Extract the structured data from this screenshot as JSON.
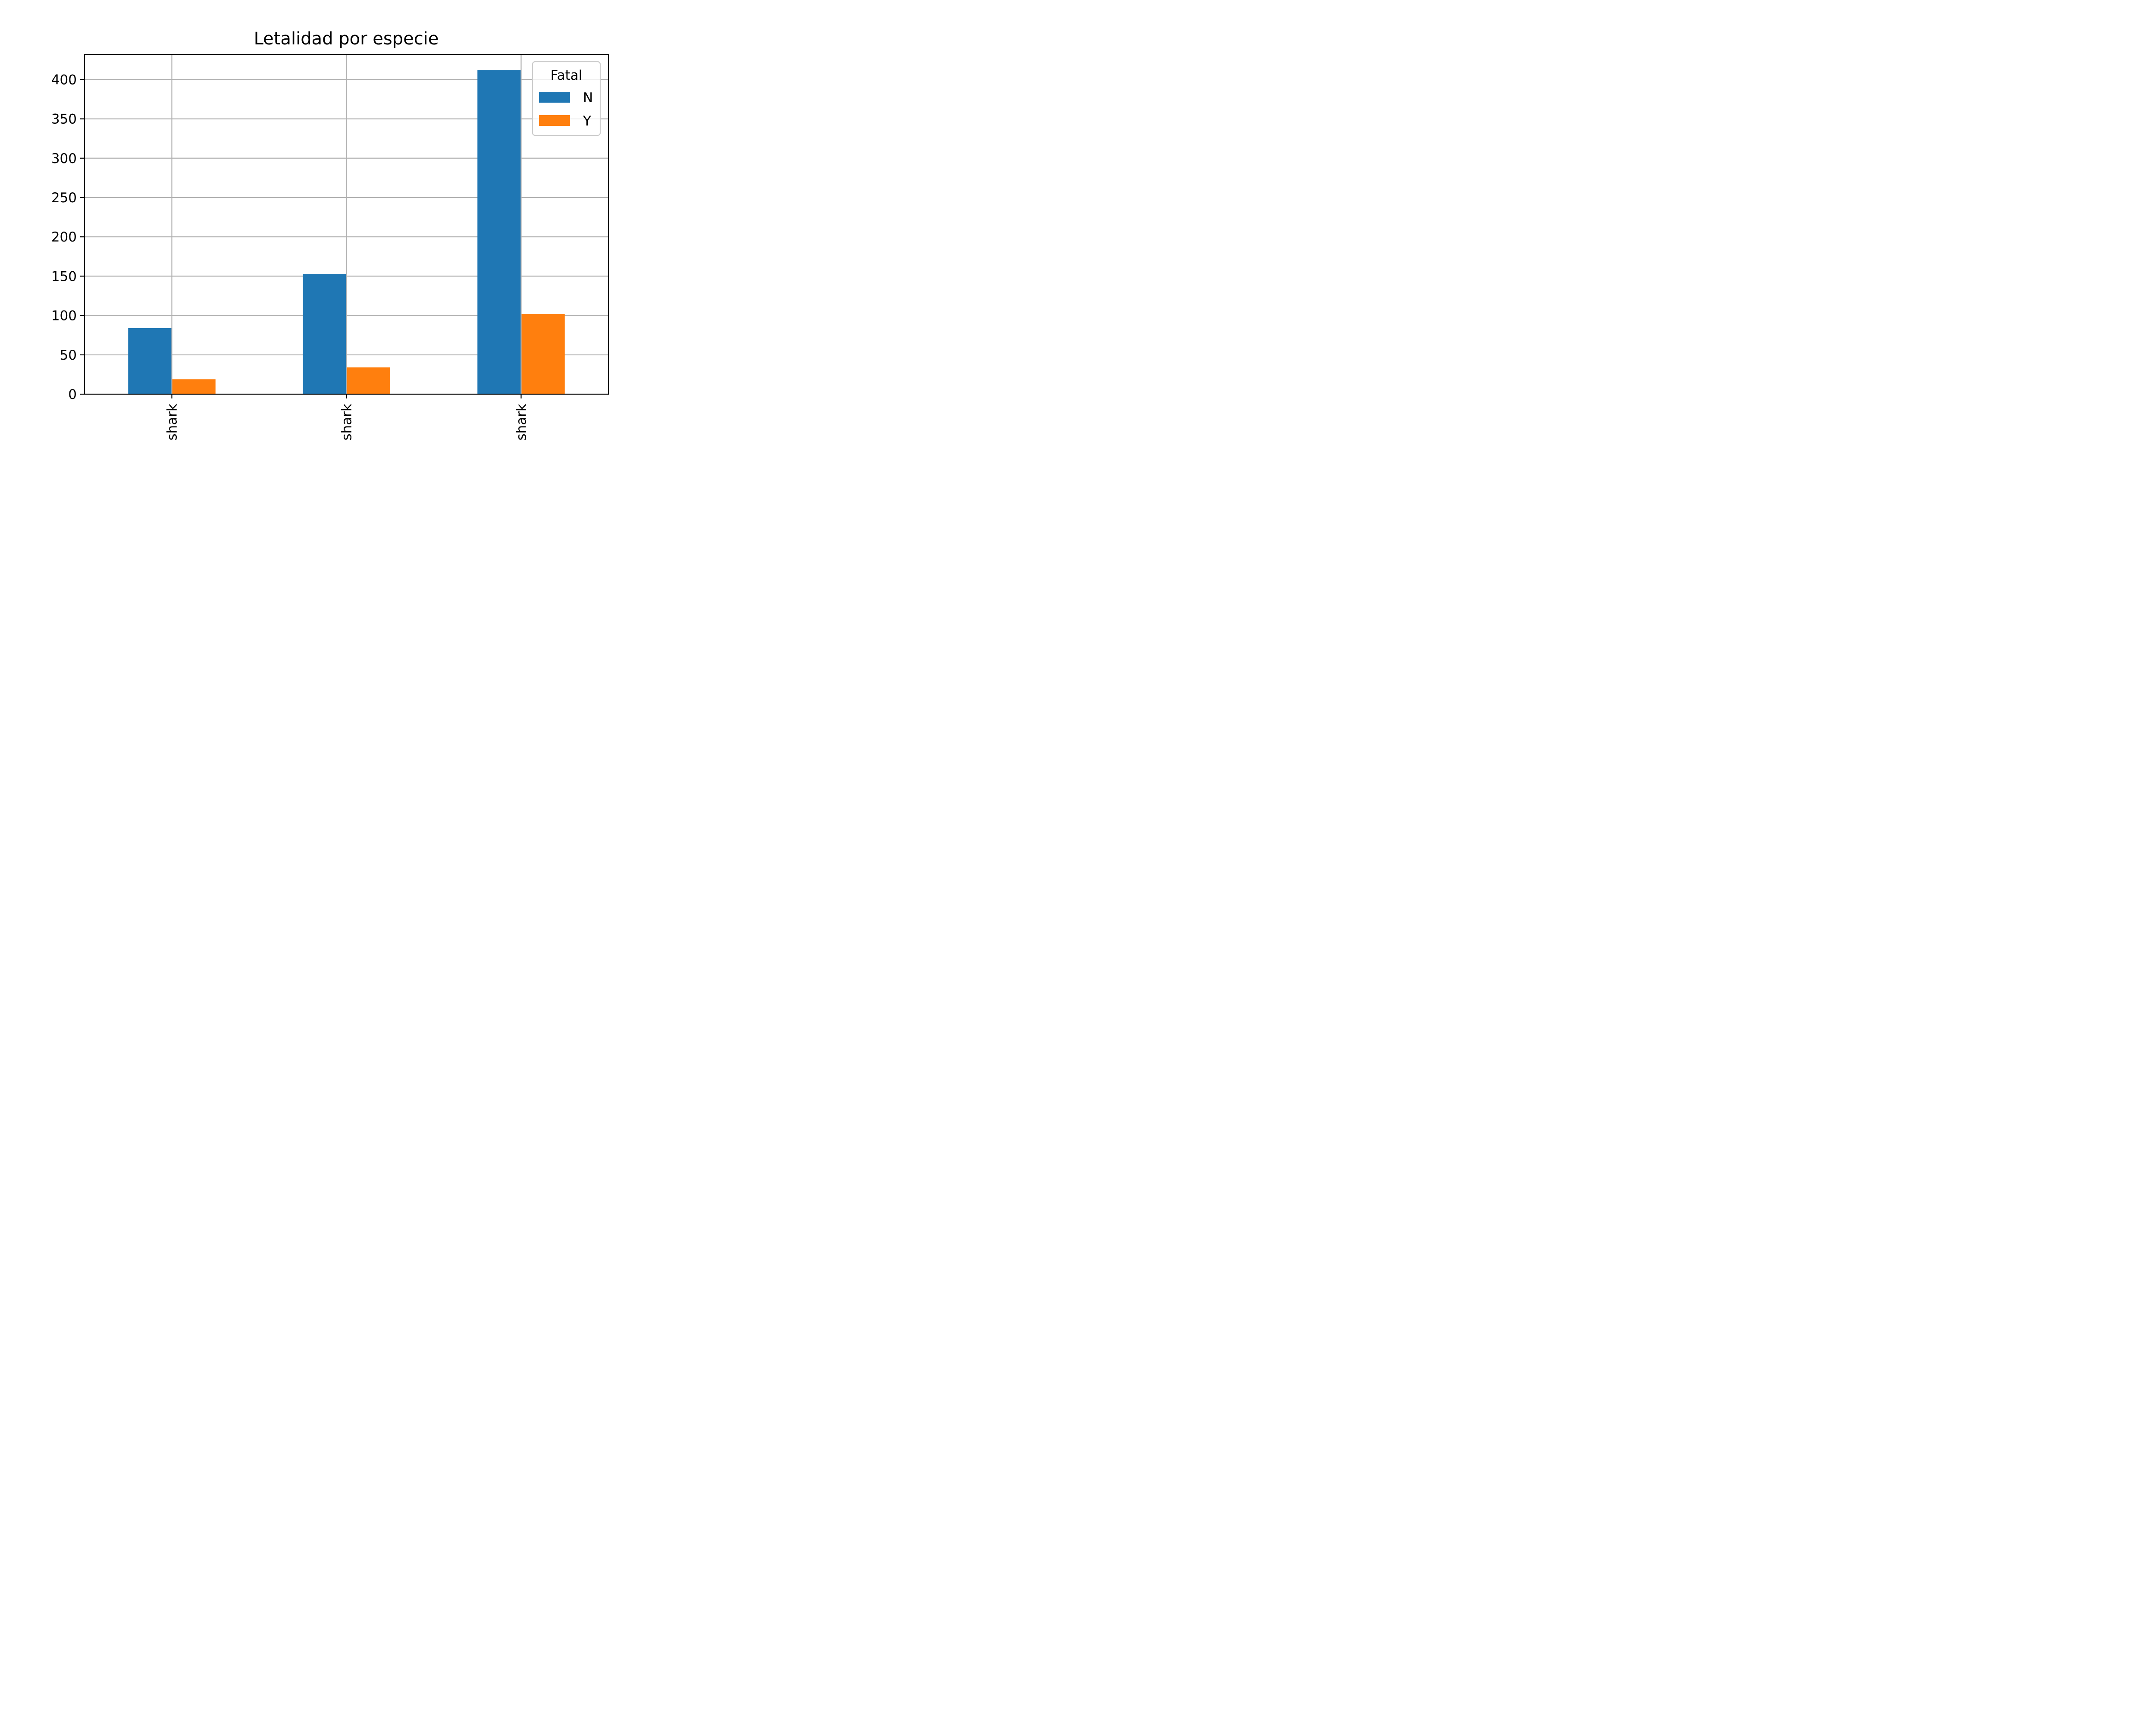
{
  "chart_data": {
    "type": "bar",
    "title": "Letalidad por especie",
    "xlabel": "",
    "ylabel": "",
    "categories": [
      "shark",
      "shark",
      "shark"
    ],
    "series": [
      {
        "name": "N",
        "color": "#1f77b4",
        "values": [
          84,
          153,
          412
        ]
      },
      {
        "name": "Y",
        "color": "#ff7f0e",
        "values": [
          19,
          34,
          102
        ]
      }
    ],
    "ylim": [
      0,
      432
    ],
    "yticks": [
      0,
      50,
      100,
      150,
      200,
      250,
      300,
      350,
      400
    ],
    "grid": true,
    "legend": {
      "title": "Fatal",
      "placement": "top-right"
    }
  }
}
